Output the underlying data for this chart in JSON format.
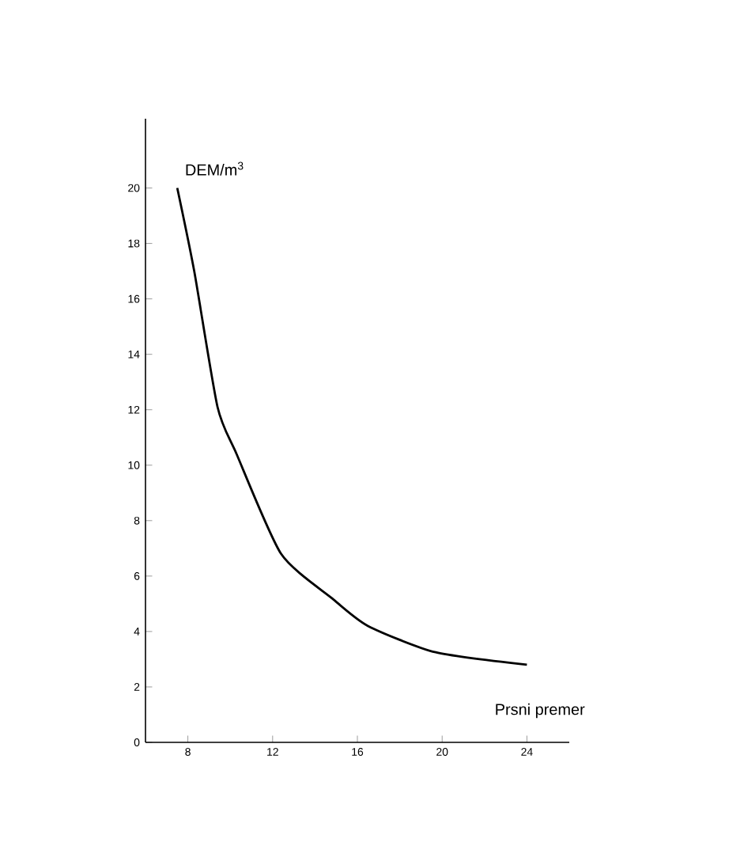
{
  "chart_data": {
    "type": "line",
    "xlabel": "Prsni premer",
    "ylabel": "DEM/m$^{3}$",
    "x": [
      7.5,
      8.3,
      9.4,
      10.3,
      12.4,
      14.8,
      16.5,
      19.7,
      24
    ],
    "series": [
      {
        "color": "#000000",
        "values": [
          20,
          17,
          12.1,
          10.4,
          6.8,
          5.2,
          4.2,
          3.25,
          2.8
        ]
      }
    ],
    "xlim": [
      6,
      26
    ],
    "ylim": [
      0,
      22.5
    ],
    "xticks": [
      8,
      12,
      16,
      20,
      24
    ],
    "yticks": [
      0,
      2,
      4,
      6,
      8,
      10,
      12,
      14,
      16,
      18,
      20
    ],
    "grid": false,
    "marker": "none",
    "line_style": "solid"
  }
}
